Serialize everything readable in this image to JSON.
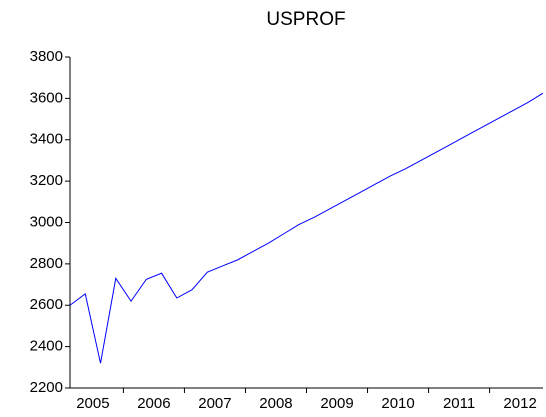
{
  "chart_data": {
    "type": "line",
    "title": "USPROF",
    "x": [
      2005,
      2005.25,
      2005.5,
      2005.75,
      2006,
      2006.25,
      2006.5,
      2006.75,
      2007,
      2007.25,
      2007.5,
      2007.75,
      2008,
      2008.25,
      2008.5,
      2008.75,
      2009,
      2009.25,
      2009.5,
      2009.75,
      2010,
      2010.25,
      2010.5,
      2010.75,
      2011,
      2011.25,
      2011.5,
      2011.75,
      2012,
      2012.25,
      2012.5,
      2012.75
    ],
    "series": [
      {
        "color": "#0000ff",
        "values": [
          2600,
          2655,
          2320,
          2730,
          2620,
          2725,
          2755,
          2635,
          2675,
          2760,
          2790,
          2820,
          2860,
          2900,
          2945,
          2990,
          3025,
          3065,
          3105,
          3145,
          3185,
          3225,
          3260,
          3300,
          3340,
          3380,
          3420,
          3460,
          3500,
          3540,
          3580,
          3625
        ]
      }
    ],
    "xlim": [
      2005,
      2012.75
    ],
    "xticks": [
      2005,
      2006,
      2007,
      2008,
      2009,
      2010,
      2011,
      2012
    ],
    "ylim": [
      2200,
      3800
    ],
    "yticks": [
      2200,
      2400,
      2600,
      2800,
      3000,
      3200,
      3400,
      3600,
      3800
    ],
    "grid": false
  }
}
